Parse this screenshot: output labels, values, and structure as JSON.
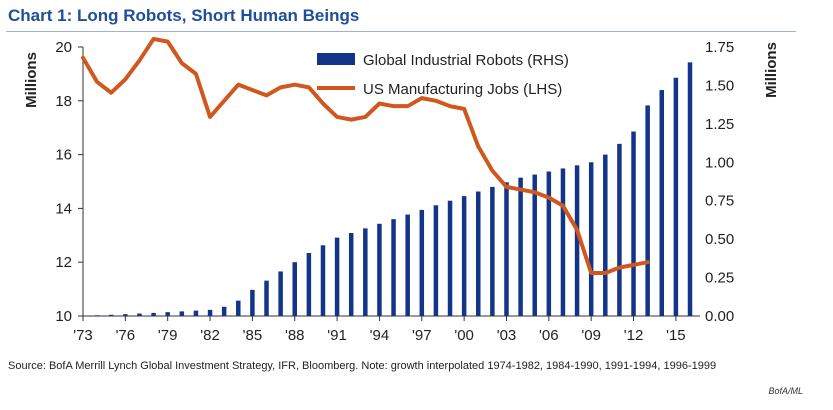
{
  "title": "Chart 1: Long Robots, Short Human Beings",
  "source_note": "Source: BofA Merrill Lynch Global Investment Strategy, IFR, Bloomberg. Note: growth interpolated 1974-1982, 1984-1990, 1991-1994, 1996-1999",
  "credit": "BofA/ML",
  "colors": {
    "title": "#1f4e9b",
    "bars": "#12358a",
    "line": "#d0581f"
  },
  "chart_data": {
    "type": "bar+line",
    "ylabel_left": "Millions",
    "ylabel_right": "Millions",
    "ylim_left": [
      10,
      20
    ],
    "ylim_right": [
      0,
      1.75
    ],
    "yticks_left": [
      "10",
      "12",
      "14",
      "16",
      "18",
      "20"
    ],
    "yticks_right": [
      "0.00",
      "0.25",
      "0.50",
      "0.75",
      "1.00",
      "1.25",
      "1.50",
      "1.75"
    ],
    "xticks": [
      "'73",
      "'76",
      "'79",
      "'82",
      "'85",
      "'88",
      "'91",
      "'94",
      "'97",
      "'00",
      "'03",
      "'06",
      "'09",
      "'12",
      "'15"
    ],
    "grid": false,
    "legend_position": "top-right",
    "series": [
      {
        "name": "Global Industrial Robots (RHS)",
        "kind": "bar",
        "axis": "right",
        "x": [
          1974,
          1975,
          1976,
          1977,
          1978,
          1979,
          1980,
          1981,
          1982,
          1983,
          1984,
          1985,
          1986,
          1987,
          1988,
          1989,
          1990,
          1991,
          1992,
          1993,
          1994,
          1995,
          1996,
          1997,
          1998,
          1999,
          2000,
          2001,
          2002,
          2003,
          2004,
          2005,
          2006,
          2007,
          2008,
          2009,
          2010,
          2011,
          2012,
          2013,
          2014,
          2015,
          2016
        ],
        "values": [
          0.005,
          0.008,
          0.012,
          0.016,
          0.02,
          0.025,
          0.03,
          0.035,
          0.04,
          0.06,
          0.1,
          0.17,
          0.23,
          0.29,
          0.35,
          0.41,
          0.46,
          0.51,
          0.54,
          0.57,
          0.6,
          0.63,
          0.66,
          0.69,
          0.72,
          0.75,
          0.78,
          0.81,
          0.84,
          0.87,
          0.9,
          0.92,
          0.94,
          0.96,
          0.98,
          1.0,
          1.05,
          1.12,
          1.2,
          1.37,
          1.47,
          1.55,
          1.65
        ]
      },
      {
        "name": "US Manufacturing Jobs (LHS)",
        "kind": "line",
        "axis": "left",
        "x": [
          1973,
          1974,
          1975,
          1976,
          1977,
          1978,
          1979,
          1980,
          1981,
          1982,
          1983,
          1984,
          1985,
          1986,
          1987,
          1988,
          1989,
          1990,
          1991,
          1992,
          1993,
          1994,
          1995,
          1996,
          1997,
          1998,
          1999,
          2000,
          2001,
          2002,
          2003,
          2004,
          2005,
          2006,
          2007,
          2008,
          2009,
          2010,
          2011,
          2012,
          2013
        ],
        "values": [
          19.6,
          18.7,
          18.3,
          18.8,
          19.5,
          20.3,
          20.2,
          19.4,
          19.0,
          17.4,
          18.0,
          18.6,
          18.4,
          18.2,
          18.5,
          18.6,
          18.5,
          17.9,
          17.4,
          17.3,
          17.4,
          17.9,
          17.8,
          17.8,
          18.1,
          18.0,
          17.8,
          17.7,
          16.3,
          15.4,
          14.8,
          14.7,
          14.6,
          14.4,
          14.1,
          13.2,
          11.6,
          11.6,
          11.8,
          11.9,
          12.0
        ]
      }
    ]
  }
}
